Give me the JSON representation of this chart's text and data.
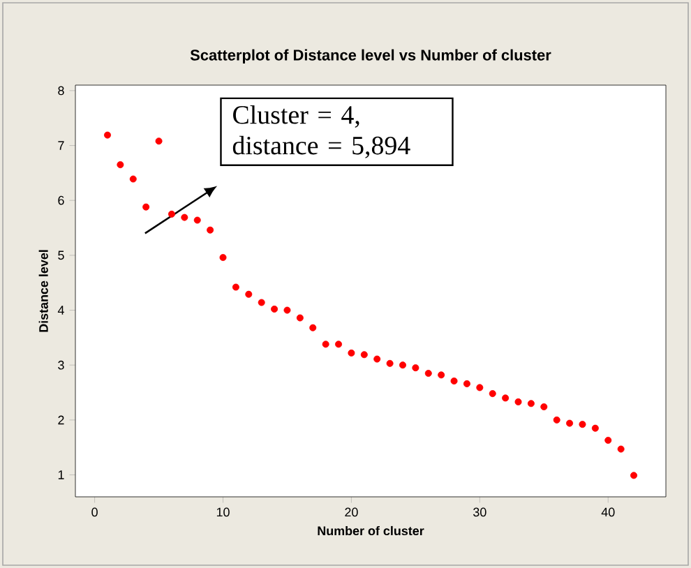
{
  "chart_data": {
    "type": "scatter",
    "title": "Scatterplot of Distance level vs Number of cluster",
    "xlabel": "Number of cluster",
    "ylabel": "Distance level",
    "x": [
      1,
      2,
      3,
      4,
      5,
      6,
      7,
      8,
      9,
      10,
      11,
      12,
      13,
      14,
      15,
      16,
      17,
      18,
      19,
      20,
      21,
      22,
      23,
      24,
      25,
      26,
      27,
      28,
      29,
      30,
      31,
      32,
      33,
      34,
      35,
      36,
      37,
      38,
      39,
      40,
      41,
      42
    ],
    "series": [
      {
        "color": "#ff0000",
        "values": [
          7.19,
          6.65,
          6.39,
          5.88,
          7.08,
          5.75,
          5.69,
          5.64,
          5.46,
          4.96,
          4.42,
          4.29,
          4.14,
          4.02,
          4.0,
          3.86,
          3.68,
          3.38,
          3.38,
          3.22,
          3.19,
          3.11,
          3.03,
          3.0,
          2.95,
          2.85,
          2.82,
          2.71,
          2.66,
          2.59,
          2.48,
          2.4,
          2.33,
          2.3,
          2.24,
          2.0,
          1.94,
          1.92,
          1.85,
          1.63,
          1.47,
          0.99
        ]
      }
    ],
    "xlim": [
      -1.5,
      44.5
    ],
    "ylim": [
      0.6,
      8.1
    ],
    "xticks": [
      0,
      10,
      20,
      30,
      40
    ],
    "yticks": [
      1,
      2,
      3,
      4,
      5,
      6,
      7,
      8
    ],
    "marker": "circle",
    "grid": false,
    "annotations": [
      "Cluster = 4, distance = 5,894"
    ]
  }
}
